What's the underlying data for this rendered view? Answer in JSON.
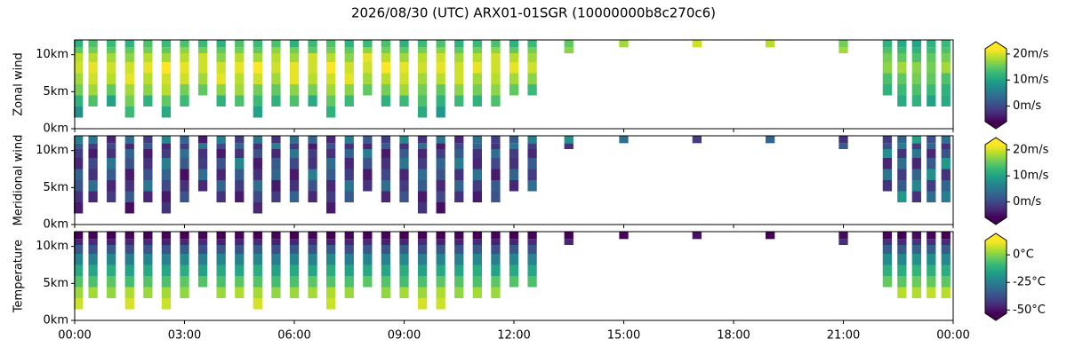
{
  "title": "2026/08/30 (UTC) ARX01-01SGR (10000000b8c270c6)",
  "chart_data": [
    {
      "type": "heatmap",
      "ylabel": "Zonal wind",
      "colormap": "viridis",
      "xlim": [
        0,
        24
      ],
      "xticks": [
        0,
        3,
        6,
        9,
        12,
        15,
        18,
        21,
        24
      ],
      "ylim": [
        0,
        12
      ],
      "yticks": [
        {
          "value": 0,
          "label": "0km"
        },
        {
          "value": 5,
          "label": "5km"
        },
        {
          "value": 10,
          "label": "10km"
        }
      ],
      "clim": [
        -6,
        22
      ],
      "cticks": [
        {
          "value": 0,
          "label": "0m/s"
        },
        {
          "value": 10,
          "label": "10m/s"
        },
        {
          "value": 20,
          "label": "20m/s"
        }
      ],
      "x": [
        0.1,
        0.5,
        1,
        1.5,
        2,
        2.5,
        3,
        3.5,
        4,
        4.5,
        5,
        5.5,
        6,
        6.5,
        7,
        7.5,
        8,
        8.5,
        9,
        9.5,
        10,
        10.5,
        11,
        11.5,
        12,
        12.5,
        13.5,
        15,
        17,
        19,
        21,
        22.2,
        22.6,
        23,
        23.4,
        23.8
      ],
      "y": [
        1.5,
        3,
        4.5,
        6,
        7.5,
        9,
        10.2,
        11,
        12
      ],
      "z": [
        [
          8,
          12,
          16,
          18,
          20,
          19,
          15,
          12
        ],
        [
          null,
          14,
          18,
          20,
          21,
          19,
          16,
          14
        ],
        [
          null,
          10,
          15,
          19,
          20,
          18,
          15,
          13
        ],
        [
          13,
          16,
          18,
          21,
          20,
          17,
          15,
          12
        ],
        [
          null,
          12,
          17,
          19,
          21,
          19,
          16,
          14
        ],
        [
          11,
          15,
          19,
          20,
          22,
          18,
          15,
          13
        ],
        [
          null,
          13,
          16,
          20,
          21,
          19,
          17,
          14
        ],
        [
          null,
          null,
          15,
          18,
          20,
          20,
          16,
          13
        ],
        [
          null,
          12,
          17,
          21,
          20,
          17,
          15,
          12
        ],
        [
          null,
          14,
          18,
          19,
          21,
          19,
          16,
          14
        ],
        [
          10,
          13,
          16,
          20,
          22,
          18,
          15,
          13
        ],
        [
          null,
          12,
          15,
          18,
          20,
          19,
          17,
          14
        ],
        [
          null,
          14,
          17,
          21,
          21,
          18,
          16,
          12
        ],
        [
          null,
          11,
          16,
          19,
          20,
          20,
          15,
          13
        ],
        [
          12,
          15,
          18,
          20,
          22,
          19,
          16,
          14
        ],
        [
          null,
          13,
          17,
          21,
          20,
          17,
          15,
          12
        ],
        [
          null,
          null,
          15,
          18,
          20,
          21,
          17,
          13
        ],
        [
          null,
          12,
          16,
          19,
          22,
          19,
          16,
          14
        ],
        [
          null,
          13,
          18,
          20,
          21,
          18,
          15,
          12
        ],
        [
          11,
          14,
          16,
          18,
          20,
          19,
          16,
          13
        ],
        [
          9,
          12,
          15,
          19,
          21,
          20,
          17,
          14
        ],
        [
          null,
          13,
          17,
          20,
          20,
          18,
          15,
          12
        ],
        [
          null,
          12,
          16,
          18,
          21,
          19,
          16,
          13
        ],
        [
          null,
          14,
          17,
          19,
          20,
          20,
          17,
          14
        ],
        [
          null,
          null,
          15,
          18,
          21,
          19,
          15,
          12
        ],
        [
          null,
          null,
          13,
          17,
          20,
          18,
          16,
          13
        ],
        [
          null,
          null,
          null,
          null,
          null,
          null,
          17,
          15
        ],
        [
          null,
          null,
          null,
          null,
          null,
          null,
          null,
          18
        ],
        [
          null,
          null,
          null,
          null,
          null,
          null,
          null,
          20
        ],
        [
          null,
          null,
          null,
          null,
          null,
          null,
          null,
          19
        ],
        [
          null,
          null,
          null,
          null,
          null,
          null,
          18,
          16
        ],
        [
          null,
          null,
          12,
          14,
          17,
          16,
          14,
          12
        ],
        [
          null,
          11,
          13,
          15,
          18,
          15,
          13,
          11
        ],
        [
          null,
          12,
          14,
          16,
          17,
          14,
          12,
          10
        ],
        [
          null,
          10,
          13,
          15,
          16,
          15,
          13,
          12
        ],
        [
          null,
          11,
          12,
          14,
          18,
          16,
          14,
          13
        ]
      ]
    },
    {
      "type": "heatmap",
      "ylabel": "Meridional wind",
      "colormap": "viridis",
      "xlim": [
        0,
        24
      ],
      "xticks": [
        0,
        3,
        6,
        9,
        12,
        15,
        18,
        21,
        24
      ],
      "ylim": [
        0,
        12
      ],
      "yticks": [
        {
          "value": 0,
          "label": "0km"
        },
        {
          "value": 5,
          "label": "5km"
        },
        {
          "value": 10,
          "label": "10km"
        }
      ],
      "clim": [
        -6,
        22
      ],
      "cticks": [
        {
          "value": 0,
          "label": "0m/s"
        },
        {
          "value": 10,
          "label": "10m/s"
        },
        {
          "value": 20,
          "label": "20m/s"
        }
      ],
      "x": [
        0.1,
        0.5,
        1,
        1.5,
        2,
        2.5,
        3,
        3.5,
        4,
        4.5,
        5,
        5.5,
        6,
        6.5,
        7,
        7.5,
        8,
        8.5,
        9,
        9.5,
        10,
        10.5,
        11,
        11.5,
        12,
        12.5,
        13.5,
        15,
        17,
        19,
        21,
        22.2,
        22.6,
        23,
        23.4,
        23.8
      ],
      "y": [
        1.5,
        3,
        4.5,
        6,
        7.5,
        9,
        10.2,
        11,
        12
      ],
      "z": [
        [
          -4,
          -2,
          1,
          3,
          -3,
          -1,
          2,
          6
        ],
        [
          null,
          -3,
          4,
          -2,
          0,
          -4,
          -1,
          5
        ],
        [
          null,
          -1,
          -3,
          2,
          5,
          -2,
          0,
          -3
        ],
        [
          -5,
          2,
          -2,
          -4,
          1,
          3,
          -3,
          4
        ],
        [
          null,
          -3,
          5,
          1,
          -2,
          -4,
          2,
          -1
        ],
        [
          -2,
          -4,
          0,
          3,
          6,
          -1,
          -3,
          7
        ],
        [
          null,
          1,
          -2,
          -5,
          2,
          4,
          -1,
          3
        ],
        [
          null,
          null,
          -3,
          4,
          -1,
          -2,
          5,
          -4
        ],
        [
          null,
          -2,
          3,
          -3,
          1,
          -4,
          0,
          6
        ],
        [
          null,
          -4,
          -1,
          2,
          7,
          -2,
          3,
          -1
        ],
        [
          -3,
          0,
          4,
          -2,
          -4,
          1,
          -2,
          5
        ],
        [
          null,
          -1,
          -4,
          3,
          2,
          -3,
          6,
          -2
        ],
        [
          null,
          3,
          -2,
          -4,
          0,
          5,
          -1,
          4
        ],
        [
          null,
          -3,
          1,
          6,
          -2,
          -1,
          -4,
          3
        ],
        [
          -4,
          -1,
          -3,
          2,
          4,
          -2,
          1,
          -3
        ],
        [
          null,
          2,
          5,
          -1,
          -3,
          3,
          -2,
          6
        ],
        [
          null,
          null,
          -2,
          -4,
          1,
          6,
          -3,
          2
        ],
        [
          null,
          -3,
          4,
          0,
          -2,
          -4,
          2,
          -1
        ],
        [
          null,
          1,
          -1,
          -3,
          5,
          2,
          -2,
          7
        ],
        [
          -2,
          -4,
          2,
          4,
          -1,
          -3,
          4,
          -2
        ],
        [
          -5,
          0,
          -3,
          1,
          3,
          -1,
          -4,
          5
        ],
        [
          null,
          -2,
          3,
          -2,
          6,
          2,
          0,
          -3
        ],
        [
          null,
          -4,
          -1,
          5,
          -3,
          -2,
          3,
          4
        ],
        [
          null,
          1,
          2,
          -4,
          0,
          4,
          -2,
          -1
        ],
        [
          null,
          null,
          -3,
          3,
          -2,
          -1,
          5,
          2
        ],
        [
          null,
          null,
          4,
          -1,
          2,
          -3,
          -1,
          6
        ],
        [
          null,
          null,
          null,
          null,
          null,
          null,
          -2,
          8
        ],
        [
          null,
          null,
          null,
          null,
          null,
          null,
          null,
          4
        ],
        [
          null,
          null,
          null,
          null,
          null,
          null,
          null,
          -1
        ],
        [
          null,
          null,
          null,
          null,
          null,
          null,
          null,
          3
        ],
        [
          null,
          null,
          null,
          null,
          null,
          null,
          2,
          -2
        ],
        [
          null,
          null,
          -2,
          5,
          -3,
          8,
          1,
          -1
        ],
        [
          null,
          9,
          2,
          -1,
          4,
          -2,
          6,
          3
        ],
        [
          null,
          -2,
          7,
          3,
          -3,
          5,
          -1,
          10
        ],
        [
          null,
          4,
          -1,
          8,
          2,
          -3,
          3,
          1
        ],
        [
          null,
          6,
          3,
          -2,
          9,
          1,
          -2,
          4
        ]
      ]
    },
    {
      "type": "heatmap",
      "ylabel": "Temperature",
      "colormap": "viridis",
      "xlim": [
        0,
        24
      ],
      "xticks": [
        {
          "value": 0,
          "label": "00:00"
        },
        {
          "value": 3,
          "label": "03:00"
        },
        {
          "value": 6,
          "label": "06:00"
        },
        {
          "value": 9,
          "label": "09:00"
        },
        {
          "value": 12,
          "label": "12:00"
        },
        {
          "value": 15,
          "label": "15:00"
        },
        {
          "value": 18,
          "label": "18:00"
        },
        {
          "value": 21,
          "label": "21:00"
        },
        {
          "value": 24,
          "label": "00:00"
        }
      ],
      "ylim": [
        0,
        12
      ],
      "yticks": [
        {
          "value": 0,
          "label": "0km"
        },
        {
          "value": 5,
          "label": "5km"
        },
        {
          "value": 10,
          "label": "10km"
        }
      ],
      "clim": [
        -53,
        13
      ],
      "cticks": [
        {
          "value": 0,
          "label": "0°C"
        },
        {
          "value": -25,
          "label": "-25°C"
        },
        {
          "value": -50,
          "label": "-50°C"
        }
      ],
      "x": [
        0.1,
        0.5,
        1,
        1.5,
        2,
        2.5,
        3,
        3.5,
        4,
        4.5,
        5,
        5.5,
        6,
        6.5,
        7,
        7.5,
        8,
        8.5,
        9,
        9.5,
        10,
        10.5,
        11,
        11.5,
        12,
        12.5,
        13.5,
        15,
        17,
        19,
        21,
        22.2,
        22.6,
        23,
        23.4,
        23.8
      ],
      "y": [
        1.5,
        3,
        4.5,
        6,
        7.5,
        9,
        10.2,
        11,
        12
      ],
      "z": [
        [
          8,
          3,
          -5,
          -13,
          -23,
          -35,
          -46,
          -53
        ],
        [
          null,
          4,
          -6,
          -14,
          -24,
          -36,
          -45,
          -52
        ],
        [
          null,
          2,
          -4,
          -12,
          -22,
          -34,
          -47,
          -53
        ],
        [
          9,
          5,
          -7,
          -15,
          -25,
          -37,
          -46,
          -52
        ],
        [
          null,
          3,
          -5,
          -13,
          -23,
          -35,
          -45,
          -53
        ],
        [
          8,
          4,
          -6,
          -14,
          -24,
          -36,
          -47,
          -52
        ],
        [
          null,
          2,
          -4,
          -12,
          -22,
          -34,
          -46,
          -53
        ],
        [
          null,
          null,
          -5,
          -15,
          -25,
          -37,
          -45,
          -52
        ],
        [
          null,
          3,
          -6,
          -13,
          -23,
          -35,
          -47,
          -53
        ],
        [
          null,
          5,
          -4,
          -14,
          -24,
          -36,
          -46,
          -52
        ],
        [
          9,
          4,
          -5,
          -12,
          -22,
          -34,
          -45,
          -53
        ],
        [
          null,
          2,
          -7,
          -15,
          -25,
          -37,
          -47,
          -52
        ],
        [
          null,
          3,
          -6,
          -13,
          -23,
          -35,
          -46,
          -53
        ],
        [
          null,
          4,
          -4,
          -14,
          -24,
          -36,
          -45,
          -52
        ],
        [
          8,
          5,
          -5,
          -12,
          -22,
          -34,
          -47,
          -53
        ],
        [
          null,
          3,
          -6,
          -15,
          -25,
          -37,
          -46,
          -52
        ],
        [
          null,
          null,
          -4,
          -13,
          -23,
          -35,
          -45,
          -53
        ],
        [
          null,
          2,
          -5,
          -14,
          -24,
          -36,
          -47,
          -52
        ],
        [
          null,
          4,
          -7,
          -12,
          -22,
          -34,
          -46,
          -53
        ],
        [
          9,
          3,
          -6,
          -15,
          -25,
          -37,
          -45,
          -52
        ],
        [
          8,
          5,
          -4,
          -13,
          -23,
          -35,
          -47,
          -53
        ],
        [
          null,
          2,
          -5,
          -14,
          -24,
          -36,
          -46,
          -52
        ],
        [
          null,
          4,
          -6,
          -12,
          -22,
          -34,
          -45,
          -53
        ],
        [
          null,
          3,
          -4,
          -15,
          -25,
          -37,
          -47,
          -52
        ],
        [
          null,
          null,
          -5,
          -13,
          -23,
          -35,
          -46,
          -53
        ],
        [
          null,
          null,
          -6,
          -14,
          -24,
          -36,
          -45,
          -52
        ],
        [
          null,
          null,
          null,
          null,
          null,
          null,
          -46,
          -53
        ],
        [
          null,
          null,
          null,
          null,
          null,
          null,
          null,
          -52
        ],
        [
          null,
          null,
          null,
          null,
          null,
          null,
          null,
          -50
        ],
        [
          null,
          null,
          null,
          null,
          null,
          null,
          null,
          -53
        ],
        [
          null,
          null,
          null,
          null,
          null,
          null,
          -44,
          -51
        ],
        [
          null,
          null,
          -3,
          -11,
          -21,
          -33,
          -44,
          -52
        ],
        [
          null,
          6,
          -4,
          -12,
          -22,
          -34,
          -45,
          -53
        ],
        [
          null,
          5,
          -2,
          -10,
          -20,
          -32,
          -43,
          -51
        ],
        [
          null,
          7,
          -3,
          -11,
          -21,
          -33,
          -44,
          -52
        ],
        [
          null,
          6,
          -4,
          -12,
          -22,
          -34,
          -45,
          -53
        ]
      ]
    }
  ]
}
